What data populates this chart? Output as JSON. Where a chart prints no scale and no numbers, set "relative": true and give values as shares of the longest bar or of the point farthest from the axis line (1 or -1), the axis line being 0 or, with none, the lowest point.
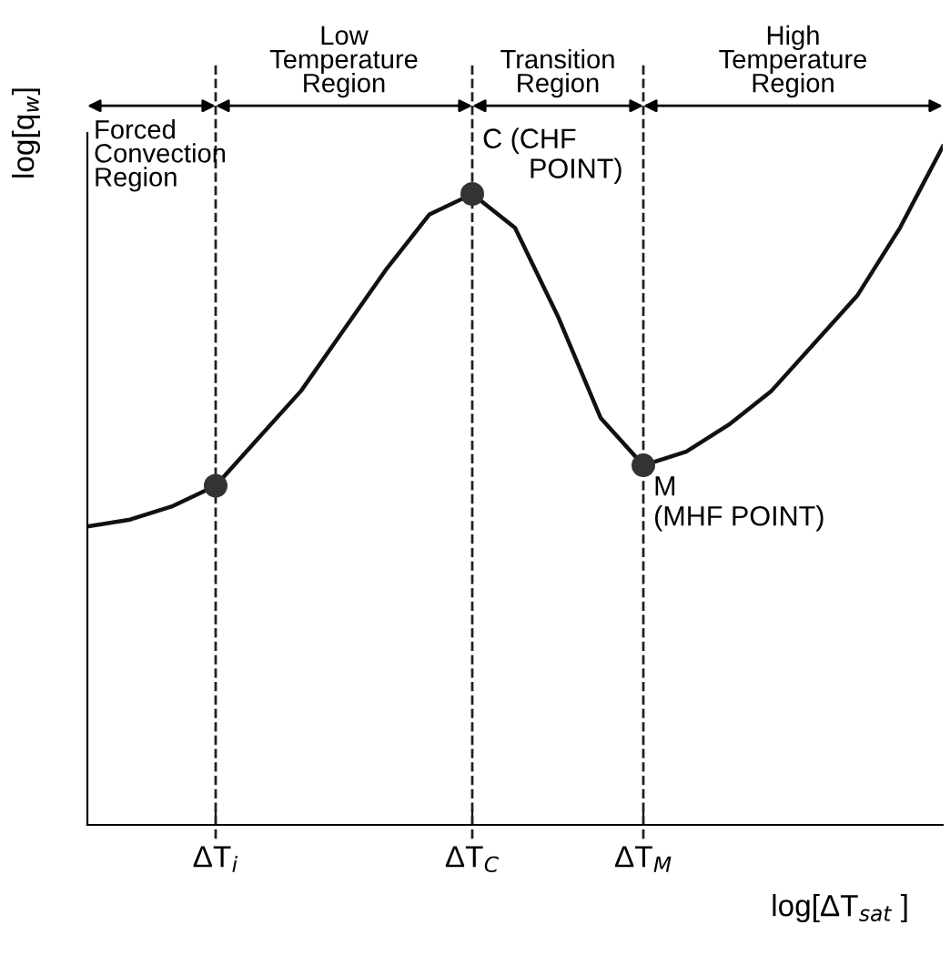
{
  "chart_data": {
    "type": "line",
    "relative": true,
    "ylabel": "log[q$_{w}$]",
    "xlabel": "log[ΔT$_{sat}$ ]",
    "categories": [
      null,
      null,
      null,
      "ΔT$_{i}$",
      null,
      null,
      null,
      null,
      null,
      "ΔT$_{C}$",
      null,
      null,
      null,
      "ΔT$_{M}$",
      null,
      null,
      null,
      null,
      null,
      null,
      null
    ],
    "series": [
      {
        "color": "#111111",
        "values": [
          0.44,
          0.45,
          0.47,
          0.5,
          0.57,
          0.64,
          0.73,
          0.82,
          0.9,
          0.93,
          0.88,
          0.75,
          0.6,
          0.53,
          0.55,
          0.59,
          0.64,
          0.71,
          0.78,
          0.88,
          1.0
        ]
      },
      {
        "type": "scatter",
        "color": "#333333",
        "marker": "circle",
        "values": [
          null,
          null,
          null,
          0.5,
          null,
          null,
          null,
          null,
          null,
          0.93,
          null,
          null,
          null,
          0.53,
          null,
          null,
          null,
          null,
          null,
          null,
          null
        ]
      }
    ],
    "ref_lines": [
      {
        "axis": "x",
        "value": "ΔT$_{i}$",
        "line_style": "dashed",
        "color": "#222222"
      },
      {
        "axis": "x",
        "value": "ΔT$_{C}$",
        "line_style": "dashed",
        "color": "#222222"
      },
      {
        "axis": "x",
        "value": "ΔT$_{M}$",
        "line_style": "dashed",
        "color": "#222222"
      }
    ],
    "annotations": [
      {
        "text": "C (CHF\n      POINT)",
        "x": "ΔT$_{C}$",
        "y": 0.93
      },
      {
        "text": "M\n(MHF POINT)",
        "x": "ΔT$_{M}$",
        "y": 0.53
      },
      "Forced\nConvection\nRegion",
      "Low\nTemperature\nRegion",
      "Transition\nRegion",
      "High\nTemperature\nRegion"
    ],
    "grid": false
  }
}
